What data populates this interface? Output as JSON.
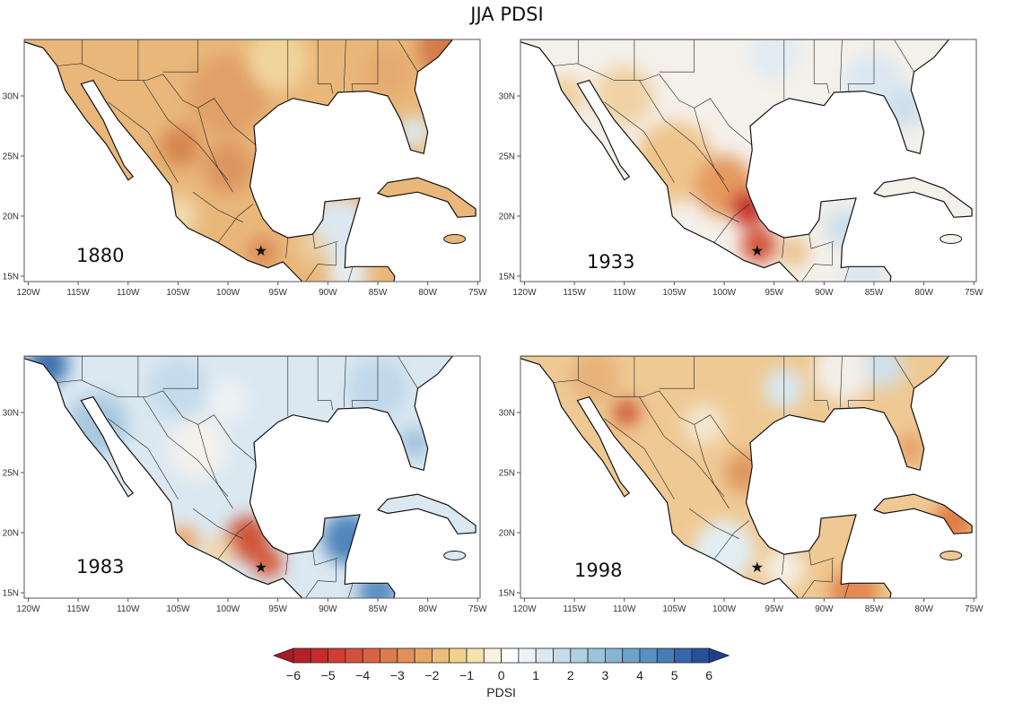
{
  "title": "JJA PDSI",
  "panels": [
    {
      "year": "1880"
    },
    {
      "year": "1933"
    },
    {
      "year": "1983"
    },
    {
      "year": "1998"
    }
  ],
  "lat_ticks": [
    "30N",
    "25N",
    "20N",
    "15N"
  ],
  "lon_ticks": [
    "120W",
    "115W",
    "110W",
    "105W",
    "100W",
    "95W",
    "90W",
    "85W",
    "80W",
    "75W"
  ],
  "colorbar": {
    "label": "PDSI",
    "ticks": [
      "-6",
      "-5",
      "-4",
      "-3",
      "-2",
      "-1",
      "0",
      "1",
      "2",
      "3",
      "4",
      "5",
      "6"
    ],
    "range": [
      -6,
      6
    ],
    "step": 0.5,
    "colors": [
      "#b5202a",
      "#c52a2e",
      "#cf3d35",
      "#d5503c",
      "#da6343",
      "#de7a4c",
      "#e39058",
      "#e8a666",
      "#edbd7a",
      "#f2d18e",
      "#f5e2b0",
      "#faf2e0",
      "#fdfdfd",
      "#ebf3f8",
      "#dae9f2",
      "#c6dceb",
      "#b0cfe3",
      "#9cc3dc",
      "#86b4d4",
      "#6fa3cb",
      "#5a90c1",
      "#467db6",
      "#3567aa",
      "#27509b"
    ],
    "low_color": "#a81b26",
    "high_color": "#1f3f8c"
  },
  "marker": {
    "symbol": "star",
    "lon": -96.7,
    "lat": 17.1
  }
}
